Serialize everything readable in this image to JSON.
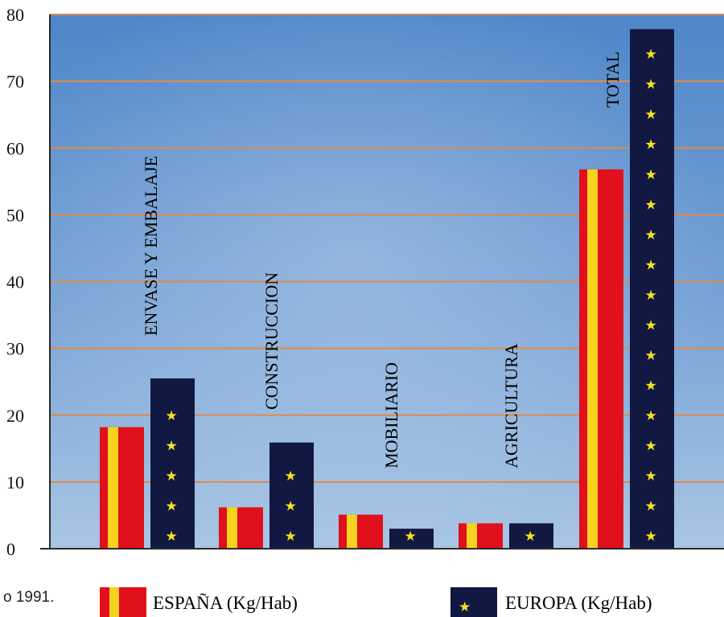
{
  "chart_data": {
    "type": "bar",
    "categories": [
      "ENVASE Y EMBALAJE",
      "CONSTRUCCION",
      "MOBILIARIO",
      "AGRICULTURA",
      "TOTAL"
    ],
    "series": [
      {
        "name": "ESPAÑA (Kg/Hab)",
        "values": [
          18.2,
          6.2,
          5.1,
          3.8,
          56.8
        ]
      },
      {
        "name": "EUROPA (Kg/Hab)",
        "values": [
          25.5,
          15.9,
          3.0,
          3.8,
          77.8
        ]
      }
    ],
    "yticks": [
      "0",
      "10",
      "20",
      "30",
      "40",
      "50",
      "60",
      "70",
      "80"
    ],
    "ylim": [
      0,
      80
    ],
    "grid": true,
    "legend_position": "bottom",
    "colors": {
      "espana_red": "#e0101c",
      "espana_yellow": "#f7d21e",
      "europa_navy": "#111842",
      "europa_star": "#f5e21c",
      "gridline": "#e08a4a",
      "background_top": "#4f86c9",
      "background_bottom": "#a9c6e4"
    }
  },
  "footnote": "o 1991.",
  "legend": {
    "items": [
      {
        "label": "ESPAÑA (Kg/Hab)",
        "icon": "spain-flag-swatch"
      },
      {
        "label": "EUROPA (Kg/Hab)",
        "icon": "europe-flag-swatch"
      }
    ]
  }
}
